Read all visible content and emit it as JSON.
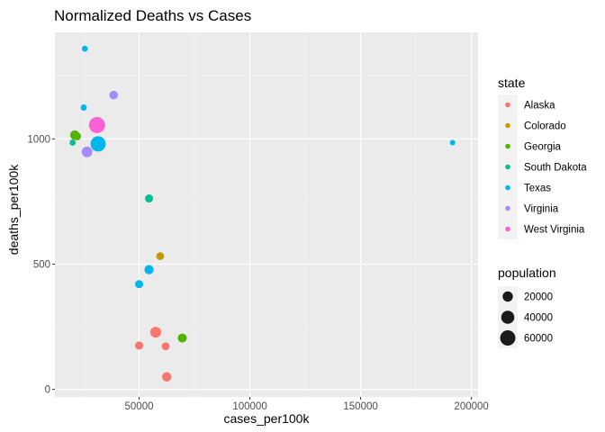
{
  "chart_data": {
    "type": "scatter",
    "title": "Normalized Deaths vs Cases",
    "xlabel": "cases_per100k",
    "ylabel": "deaths_per100k",
    "xlim": [
      12000,
      203000
    ],
    "ylim": [
      -30,
      1425
    ],
    "x_ticks": [
      50000,
      100000,
      150000,
      200000
    ],
    "x_tick_labels": [
      "50000",
      "100000",
      "150000",
      "200000"
    ],
    "y_ticks": [
      0,
      500,
      1000
    ],
    "y_tick_labels": [
      "0",
      "500",
      "1000"
    ],
    "grid": true,
    "background": "#ebebeb",
    "color_legend": {
      "title": "state",
      "position": "right",
      "entries": [
        {
          "name": "Alaska",
          "color": "#F8766D"
        },
        {
          "name": "Colorado",
          "color": "#C49A00"
        },
        {
          "name": "Georgia",
          "color": "#53B400"
        },
        {
          "name": "South Dakota",
          "color": "#00C094"
        },
        {
          "name": "Texas",
          "color": "#00B6EB"
        },
        {
          "name": "Virginia",
          "color": "#A58AFF"
        },
        {
          "name": "West Virginia",
          "color": "#FB61D7"
        }
      ]
    },
    "size_legend": {
      "title": "population",
      "position": "right",
      "entries": [
        {
          "label": "20000",
          "value": 20000
        },
        {
          "label": "40000",
          "value": 40000
        },
        {
          "label": "60000",
          "value": 60000
        }
      ]
    },
    "points": [
      {
        "state": "Texas",
        "x": 25500,
        "y": 1360,
        "population": 2500
      },
      {
        "state": "Texas",
        "x": 25000,
        "y": 1125,
        "population": 3000
      },
      {
        "state": "Virginia",
        "x": 38500,
        "y": 1175,
        "population": 11000
      },
      {
        "state": "Georgia",
        "x": 21000,
        "y": 1015,
        "population": 15000
      },
      {
        "state": "Georgia",
        "x": 22000,
        "y": 1010,
        "population": 8000
      },
      {
        "state": "South Dakota",
        "x": 20000,
        "y": 985,
        "population": 3000
      },
      {
        "state": "West Virginia",
        "x": 31000,
        "y": 1055,
        "population": 70000
      },
      {
        "state": "Texas",
        "x": 31500,
        "y": 980,
        "population": 60000
      },
      {
        "state": "Virginia",
        "x": 26500,
        "y": 948,
        "population": 22000
      },
      {
        "state": "Texas",
        "x": 191500,
        "y": 985,
        "population": 1500
      },
      {
        "state": "South Dakota",
        "x": 54500,
        "y": 762,
        "population": 9000
      },
      {
        "state": "Colorado",
        "x": 59500,
        "y": 532,
        "population": 8000
      },
      {
        "state": "Texas",
        "x": 54500,
        "y": 478,
        "population": 14000
      },
      {
        "state": "Texas",
        "x": 50000,
        "y": 420,
        "population": 9000
      },
      {
        "state": "Alaska",
        "x": 57500,
        "y": 228,
        "population": 23000
      },
      {
        "state": "Georgia",
        "x": 69500,
        "y": 205,
        "population": 13000
      },
      {
        "state": "Alaska",
        "x": 50000,
        "y": 175,
        "population": 9000
      },
      {
        "state": "Alaska",
        "x": 62000,
        "y": 172,
        "population": 8000
      },
      {
        "state": "Alaska",
        "x": 62500,
        "y": 50,
        "population": 15000
      }
    ]
  }
}
